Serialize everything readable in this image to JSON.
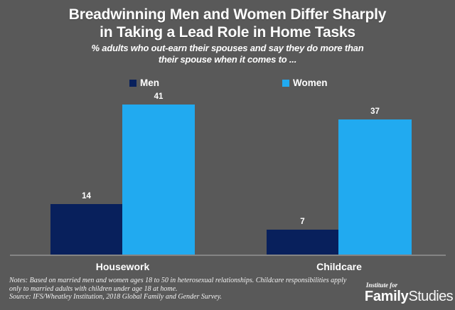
{
  "colors": {
    "background": "#595959",
    "men_bar": "#08205c",
    "women_bar": "#21aaf0",
    "text": "#ffffff",
    "axis_line": "#848484"
  },
  "chart_data": {
    "type": "bar",
    "title": "Breadwinning Men and Women Differ Sharply in Taking a Lead Role in Home Tasks",
    "title_lines": [
      "Breadwinning Men and Women Differ Sharply",
      "in Taking a Lead Role in Home Tasks"
    ],
    "subtitle": "% adults who out-earn their spouses and say they do more than their spouse when it comes to ...",
    "subtitle_lines": [
      "% adults who out-earn their spouses and say they do more than",
      "their spouse when it comes to ..."
    ],
    "categories": [
      "Housework",
      "Childcare"
    ],
    "series": [
      {
        "name": "Men",
        "color": "#08205c",
        "values": [
          14,
          7
        ]
      },
      {
        "name": "Women",
        "color": "#21aaf0",
        "values": [
          41,
          37
        ]
      }
    ],
    "ylim": [
      0,
      45
    ],
    "grid": false,
    "legend_position": "top",
    "value_labels": true
  },
  "footer": {
    "notes_lines": [
      "Notes: Based on married men and women ages 18 to 50 in heterosexual relationships. Childcare responsibilities apply",
      "only to married adults with children under age 18 at home.",
      "Source:  IFS/Wheatley Institution, 2018 Global Family and Gender Survey."
    ],
    "logo": {
      "top": "Institute for",
      "bold": "Family",
      "light": "Studies"
    }
  }
}
